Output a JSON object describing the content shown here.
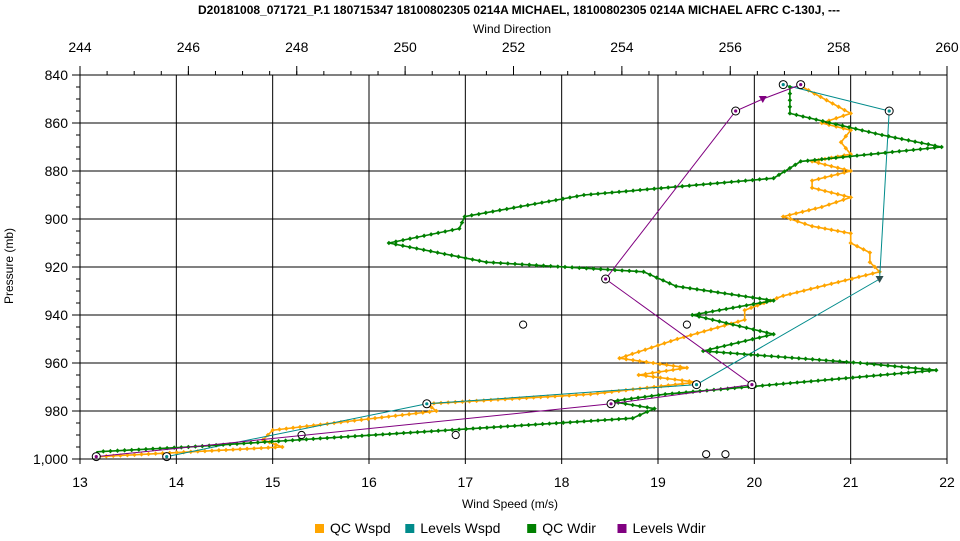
{
  "chart_data": {
    "type": "line",
    "title": "D20181008_071721_P.1 180715347 18100802305 0214A MICHAEL, 18100802305 0214A MICHAEL AFRC C-130J, ---",
    "xlabel": "Wind Speed (m/s)",
    "x2label": "Wind Direction",
    "ylabel": "Pressure (mb)",
    "xlim": [
      13,
      22
    ],
    "x2lim": [
      244,
      260
    ],
    "ylim": [
      840,
      1000
    ],
    "y_inverted": true,
    "grid": true,
    "legend_position": "bottom",
    "x_ticks": [
      "13",
      "14",
      "15",
      "16",
      "17",
      "18",
      "19",
      "20",
      "21",
      "22"
    ],
    "x2_ticks": [
      "244",
      "246",
      "248",
      "250",
      "252",
      "254",
      "256",
      "258",
      "260"
    ],
    "y_ticks": [
      "840",
      "860",
      "880",
      "900",
      "920",
      "940",
      "960",
      "980",
      "1,000"
    ],
    "colors": {
      "qc_wspd": "#FFA500",
      "levels_wspd": "#008B8B",
      "qc_wdir": "#008000",
      "levels_wdir": "#800080"
    },
    "series": [
      {
        "name": "QC Wspd",
        "axis": "wind_speed",
        "points": [
          [
            20.5,
            845
          ],
          [
            21.0,
            856
          ],
          [
            20.7,
            860
          ],
          [
            21.0,
            863
          ],
          [
            20.9,
            868
          ],
          [
            21.0,
            873
          ],
          [
            20.6,
            876
          ],
          [
            21.0,
            880
          ],
          [
            20.6,
            884
          ],
          [
            20.6,
            887
          ],
          [
            21.0,
            891
          ],
          [
            20.7,
            895
          ],
          [
            20.3,
            899
          ],
          [
            20.6,
            903
          ],
          [
            21.0,
            906
          ],
          [
            21.0,
            910
          ],
          [
            21.2,
            914
          ],
          [
            21.2,
            918
          ],
          [
            21.3,
            922
          ],
          [
            20.3,
            932
          ],
          [
            19.9,
            938
          ],
          [
            19.9,
            942
          ],
          [
            19.2,
            950
          ],
          [
            18.6,
            958
          ],
          [
            19.3,
            962
          ],
          [
            18.8,
            965
          ],
          [
            19.4,
            968
          ],
          [
            18.3,
            973
          ],
          [
            16.6,
            977
          ],
          [
            16.7,
            980
          ],
          [
            15.0,
            988
          ],
          [
            14.9,
            992
          ],
          [
            15.1,
            995
          ],
          [
            13.2,
            999
          ]
        ]
      },
      {
        "name": "Levels Wspd",
        "axis": "wind_speed",
        "points": [
          [
            20.3,
            844
          ],
          [
            21.4,
            855
          ],
          [
            21.3,
            925
          ],
          [
            19.4,
            969
          ],
          [
            16.6,
            977
          ],
          [
            13.9,
            999
          ]
        ]
      },
      {
        "name": "QC Wdir",
        "axis": "wind_direction",
        "points": [
          [
            257.1,
            845
          ],
          [
            257.1,
            856
          ],
          [
            258.8,
            865
          ],
          [
            259.9,
            870
          ],
          [
            257.3,
            876
          ],
          [
            256.8,
            883
          ],
          [
            253.3,
            890
          ],
          [
            251.1,
            899
          ],
          [
            251.0,
            904
          ],
          [
            249.7,
            910
          ],
          [
            251.5,
            918
          ],
          [
            254.4,
            922
          ],
          [
            255.0,
            928
          ],
          [
            256.8,
            934
          ],
          [
            255.3,
            940
          ],
          [
            256.8,
            948
          ],
          [
            255.5,
            955
          ],
          [
            258.4,
            960
          ],
          [
            259.8,
            963
          ],
          [
            254.8,
            973
          ],
          [
            253.8,
            976
          ],
          [
            254.6,
            979
          ],
          [
            254.2,
            983
          ],
          [
            246.0,
            995
          ],
          [
            244.3,
            997
          ]
        ]
      },
      {
        "name": "Levels Wdir",
        "axis": "wind_direction",
        "points": [
          [
            257.3,
            844
          ],
          [
            256.6,
            850
          ],
          [
            256.1,
            855
          ],
          [
            253.7,
            925
          ],
          [
            256.4,
            969
          ],
          [
            253.8,
            977
          ],
          [
            244.3,
            999
          ]
        ]
      }
    ],
    "points": {
      "name": "",
      "axis": "wind_speed",
      "points": [
        [
          17.6,
          944
        ],
        [
          19.3,
          944
        ],
        [
          15.3,
          990
        ],
        [
          16.9,
          990
        ],
        [
          19.5,
          998
        ],
        [
          19.7,
          998
        ]
      ]
    }
  }
}
